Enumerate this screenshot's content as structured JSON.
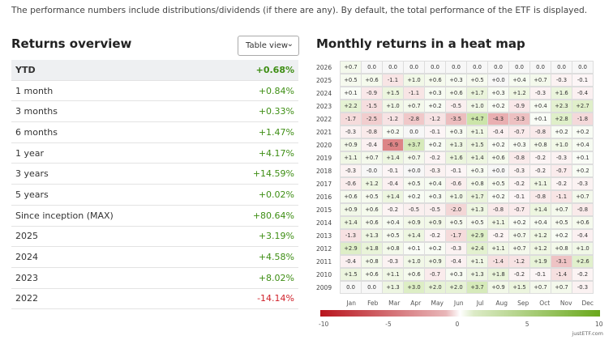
{
  "note": "The performance numbers include distributions/dividends (if there are any). By default, the total performance of the ETF is displayed.",
  "returns": {
    "title": "Returns overview",
    "view_select": "Table view",
    "rows": [
      {
        "label": "YTD",
        "value": "+0.68%"
      },
      {
        "label": "1 month",
        "value": "+0.84%"
      },
      {
        "label": "3 months",
        "value": "+0.33%"
      },
      {
        "label": "6 months",
        "value": "+1.47%"
      },
      {
        "label": "1 year",
        "value": "+4.17%"
      },
      {
        "label": "3 years",
        "value": "+14.59%"
      },
      {
        "label": "5 years",
        "value": "+0.02%"
      },
      {
        "label": "Since inception (MAX)",
        "value": "+80.64%"
      },
      {
        "label": "2025",
        "value": "+3.19%"
      },
      {
        "label": "2024",
        "value": "+4.58%"
      },
      {
        "label": "2023",
        "value": "+8.02%"
      },
      {
        "label": "2022",
        "value": "-14.14%"
      }
    ]
  },
  "heatmap": {
    "title": "Monthly returns in a heat map",
    "months": [
      "Jan",
      "Feb",
      "Mar",
      "Apr",
      "May",
      "Jun",
      "Jul",
      "Aug",
      "Sep",
      "Oct",
      "Nov",
      "Dec"
    ],
    "colors": {
      "negative": "#b8141c",
      "positive": "#6aa81c"
    },
    "scale": [
      "-10",
      "-5",
      "0",
      "5",
      "10"
    ],
    "rows": [
      {
        "year": "2026",
        "values": [
          "+0.7",
          "0.0",
          "0.0",
          "0.0",
          "0.0",
          "0.0",
          "0.0",
          "0.0",
          "0.0",
          "0.0",
          "0.0",
          "0.0"
        ]
      },
      {
        "year": "2025",
        "values": [
          "+0.5",
          "+0.6",
          "-1.1",
          "+1.0",
          "+0.6",
          "+0.3",
          "+0.5",
          "+0.0",
          "+0.4",
          "+0.7",
          "-0.3",
          "-0.1"
        ]
      },
      {
        "year": "2024",
        "values": [
          "+0.1",
          "-0.9",
          "+1.5",
          "-1.1",
          "+0.3",
          "+0.6",
          "+1.7",
          "+0.3",
          "+1.2",
          "-0.3",
          "+1.6",
          "-0.4"
        ]
      },
      {
        "year": "2023",
        "values": [
          "+2.2",
          "-1.5",
          "+1.0",
          "+0.7",
          "+0.2",
          "-0.5",
          "+1.0",
          "+0.2",
          "-0.9",
          "+0.4",
          "+2.3",
          "+2.7"
        ]
      },
      {
        "year": "2022",
        "values": [
          "-1.7",
          "-2.5",
          "-1.2",
          "-2.8",
          "-1.2",
          "-3.5",
          "+4.7",
          "-4.3",
          "-3.3",
          "+0.1",
          "+2.8",
          "-1.8"
        ]
      },
      {
        "year": "2021",
        "values": [
          "-0.3",
          "-0.8",
          "+0.2",
          "0.0",
          "-0.1",
          "+0.3",
          "+1.1",
          "-0.4",
          "-0.7",
          "-0.8",
          "+0.2",
          "+0.2"
        ]
      },
      {
        "year": "2020",
        "values": [
          "+0.9",
          "-0.4",
          "-6.9",
          "+3.7",
          "+0.2",
          "+1.3",
          "+1.5",
          "+0.2",
          "+0.3",
          "+0.8",
          "+1.0",
          "+0.4"
        ]
      },
      {
        "year": "2019",
        "values": [
          "+1.1",
          "+0.7",
          "+1.4",
          "+0.7",
          "-0.2",
          "+1.6",
          "+1.4",
          "+0.6",
          "-0.8",
          "-0.2",
          "-0.3",
          "+0.1"
        ]
      },
      {
        "year": "2018",
        "values": [
          "-0.3",
          "-0.0",
          "-0.1",
          "+0.0",
          "-0.3",
          "-0.1",
          "+0.3",
          "+0.0",
          "-0.3",
          "-0.2",
          "-0.7",
          "+0.2"
        ]
      },
      {
        "year": "2017",
        "values": [
          "-0.6",
          "+1.2",
          "-0.4",
          "+0.5",
          "+0.4",
          "-0.6",
          "+0.8",
          "+0.5",
          "-0.2",
          "+1.1",
          "-0.2",
          "-0.3"
        ]
      },
      {
        "year": "2016",
        "values": [
          "+0.6",
          "+0.5",
          "+1.4",
          "+0.2",
          "+0.3",
          "+1.0",
          "+1.7",
          "+0.2",
          "-0.1",
          "-0.8",
          "-1.1",
          "+0.7"
        ]
      },
      {
        "year": "2015",
        "values": [
          "+0.9",
          "+0.6",
          "-0.2",
          "-0.5",
          "-0.5",
          "-2.0",
          "+1.3",
          "-0.8",
          "-0.7",
          "+1.4",
          "+0.7",
          "-0.8"
        ]
      },
      {
        "year": "2014",
        "values": [
          "+1.4",
          "+0.6",
          "+0.4",
          "+0.9",
          "+0.9",
          "+0.5",
          "+0.5",
          "+1.1",
          "+0.2",
          "+0.4",
          "+0.5",
          "+0.6"
        ]
      },
      {
        "year": "2013",
        "values": [
          "-1.3",
          "+1.3",
          "+0.5",
          "+1.4",
          "-0.2",
          "-1.7",
          "+2.9",
          "-0.2",
          "+0.7",
          "+1.2",
          "+0.2",
          "-0.4"
        ]
      },
      {
        "year": "2012",
        "values": [
          "+2.9",
          "+1.8",
          "+0.8",
          "+0.1",
          "+0.2",
          "-0.3",
          "+2.4",
          "+1.1",
          "+0.7",
          "+1.2",
          "+0.8",
          "+1.0"
        ]
      },
      {
        "year": "2011",
        "values": [
          "-0.4",
          "+0.8",
          "-0.3",
          "+1.0",
          "+0.9",
          "-0.4",
          "+1.1",
          "-1.4",
          "-1.2",
          "+1.9",
          "-3.1",
          "+2.6"
        ]
      },
      {
        "year": "2010",
        "values": [
          "+1.5",
          "+0.6",
          "+1.1",
          "+0.6",
          "-0.7",
          "+0.3",
          "+1.3",
          "+1.8",
          "-0.2",
          "-0.1",
          "-1.4",
          "-0.2"
        ]
      },
      {
        "year": "2009",
        "values": [
          "0.0",
          "0.0",
          "+1.3",
          "+3.0",
          "+2.0",
          "+2.0",
          "+3.7",
          "+0.9",
          "+1.5",
          "+0.7",
          "+0.7",
          "-0.3"
        ]
      }
    ]
  },
  "brand": "justETF.com"
}
